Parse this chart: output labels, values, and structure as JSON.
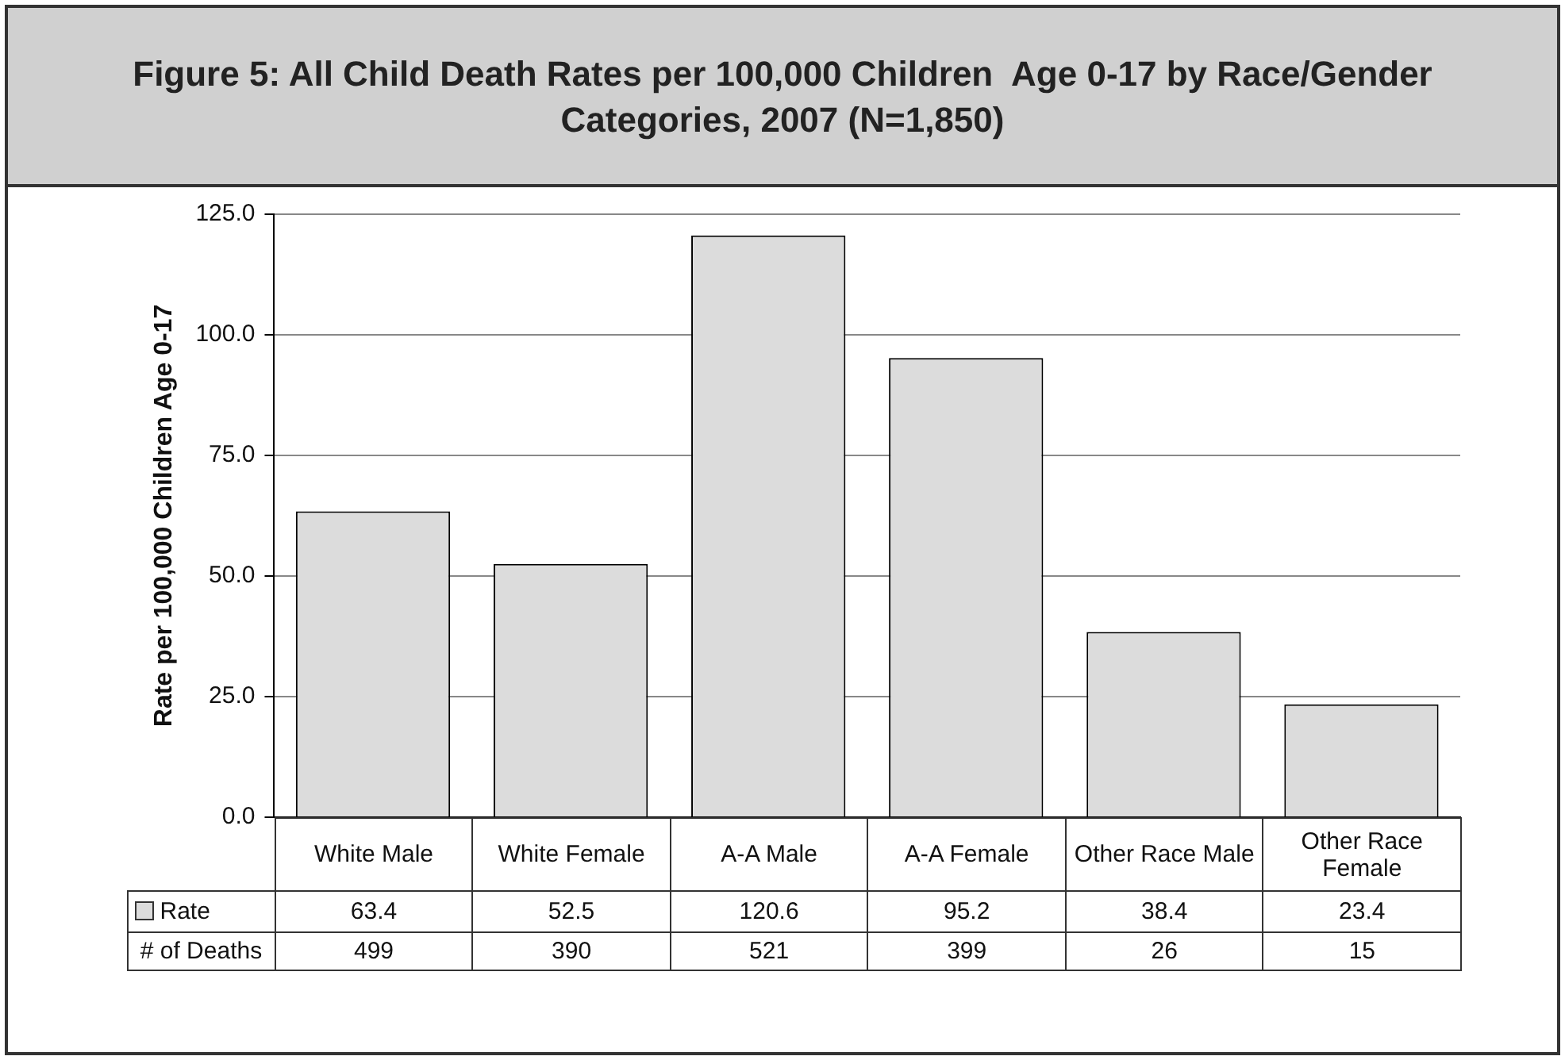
{
  "chart_data": {
    "type": "bar",
    "title": "Figure 5: All Child Death Rates per 100,000 Children  Age 0-17 by Race/Gender Categories, 2007 (N=1,850)",
    "ylabel": "Rate per 100,000 Children Age 0-17",
    "categories": [
      "White Male",
      "White Female",
      "A-A Male",
      "A-A Female",
      "Other Race Male",
      "Other Race Female"
    ],
    "series": [
      {
        "name": "Rate",
        "color": "#dcdcdc",
        "values": [
          63.4,
          52.5,
          120.6,
          95.2,
          38.4,
          23.4
        ]
      }
    ],
    "ylim": [
      0,
      125
    ],
    "yticks": [
      {
        "value": 0,
        "label": "0.0"
      },
      {
        "value": 25,
        "label": "25.0"
      },
      {
        "value": 50,
        "label": "50.0"
      },
      {
        "value": 75,
        "label": "75.0"
      },
      {
        "value": 100,
        "label": "100.0"
      },
      {
        "value": 125,
        "label": "125.0"
      }
    ],
    "grid": "y",
    "legend": "bottom",
    "data_labels": true,
    "annotations": [
      "# of Deaths",
      "499",
      "390",
      "521",
      "399",
      "26",
      "15"
    ]
  }
}
